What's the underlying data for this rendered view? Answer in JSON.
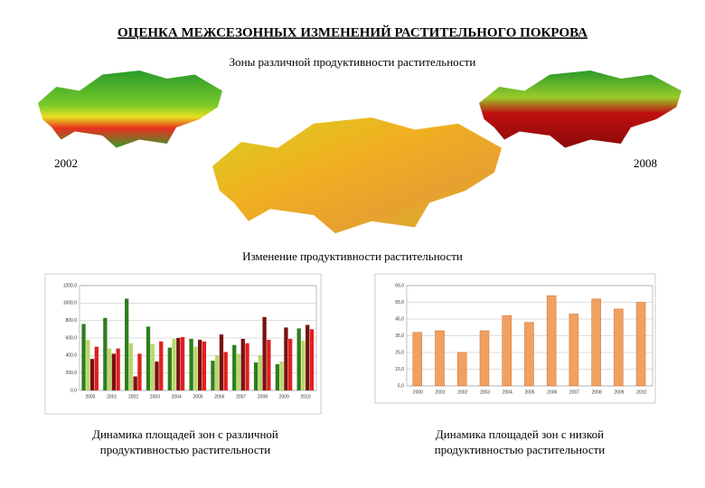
{
  "title": "ОЦЕНКА МЕЖСЕЗОННЫХ ИЗМЕНЕНИЙ РАСТИТЕЛЬНОГО ПОКРОВА",
  "subtitle": "Зоны различной продуктивности растительности",
  "map_labels": [
    "2002",
    "2008"
  ],
  "section_title": "Изменение продуктивности растительности",
  "captions": [
    [
      "Динамика площадей зон с различной",
      "продуктивностью растительности"
    ],
    [
      "Динамика площадей зон с низкой",
      "продуктивностью растительности"
    ]
  ],
  "chart_data": [
    {
      "type": "bar",
      "categories": [
        "2000",
        "2001",
        "2002",
        "2003",
        "2004",
        "2005",
        "2006",
        "2007",
        "2008",
        "2009",
        "2010"
      ],
      "series": [
        {
          "color": "#2e7d1e",
          "values": [
            760,
            830,
            1050,
            730,
            490,
            590,
            340,
            520,
            320,
            300,
            710
          ]
        },
        {
          "color": "#b9d86a",
          "values": [
            580,
            480,
            540,
            530,
            590,
            500,
            400,
            420,
            400,
            330,
            570
          ]
        },
        {
          "color": "#7a1010",
          "values": [
            360,
            420,
            160,
            330,
            600,
            580,
            640,
            590,
            840,
            720,
            750
          ]
        },
        {
          "color": "#e02020",
          "values": [
            500,
            480,
            420,
            560,
            610,
            560,
            440,
            540,
            580,
            590,
            700
          ]
        }
      ],
      "ylim": [
        0,
        1200
      ],
      "yticks": [
        {
          "value": 0,
          "label": "0,0"
        },
        {
          "value": 200,
          "label": "200,0"
        },
        {
          "value": 400,
          "label": "400,0"
        },
        {
          "value": 600,
          "label": "600,0"
        },
        {
          "value": 800,
          "label": "800,0"
        },
        {
          "value": 1000,
          "label": "1000,0"
        },
        {
          "value": 1200,
          "label": "1200,0"
        }
      ],
      "grid": true
    },
    {
      "type": "bar",
      "categories": [
        "2000",
        "2001",
        "2002",
        "2003",
        "2004",
        "2005",
        "2006",
        "2007",
        "2008",
        "2009",
        "2010"
      ],
      "series": [
        {
          "color": "#f0a060",
          "values": [
            37,
            38,
            25,
            38,
            47,
            43,
            59,
            48,
            57,
            51,
            55
          ]
        }
      ],
      "ylim": [
        5,
        65
      ],
      "yticks": [
        {
          "value": 5,
          "label": "5,0"
        },
        {
          "value": 15,
          "label": "15,0"
        },
        {
          "value": 25,
          "label": "25,0"
        },
        {
          "value": 35,
          "label": "35,0"
        },
        {
          "value": 45,
          "label": "45,0"
        },
        {
          "value": 55,
          "label": "55,0"
        },
        {
          "value": 65,
          "label": "65,0"
        }
      ],
      "grid": true
    }
  ]
}
